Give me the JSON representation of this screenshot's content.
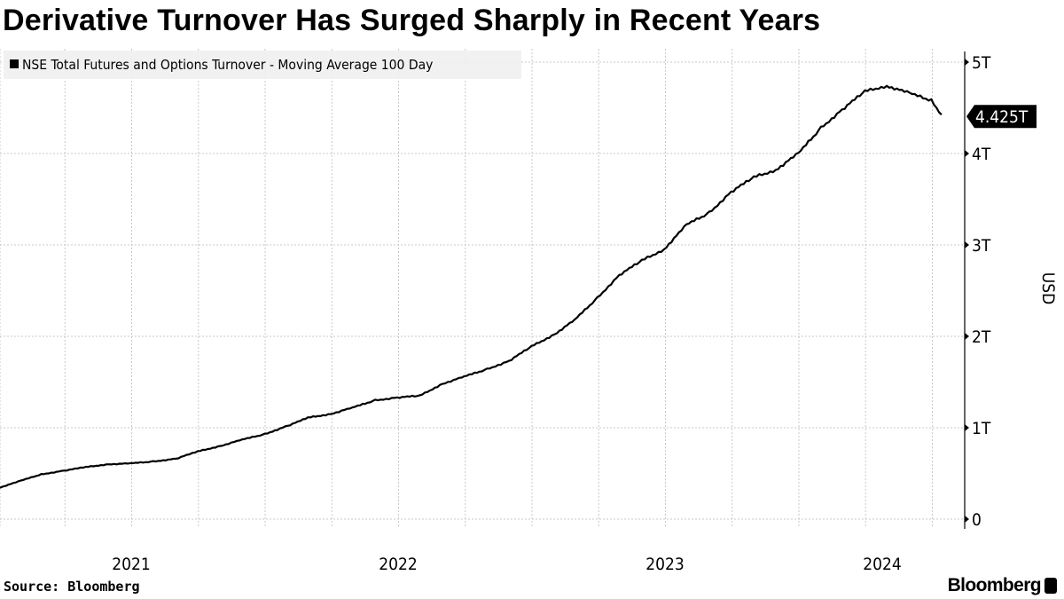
{
  "title": "Derivative Turnover Has Surged Sharply in Recent Years",
  "source": "Source: Bloomberg",
  "logo": "Bloomberg",
  "chart_data": {
    "type": "line",
    "title": "Derivative Turnover Has Surged Sharply in Recent Years",
    "ylabel": "USD",
    "xlabel": "",
    "ylim": [
      0,
      5
    ],
    "y_unit": "T",
    "y_ticks": [
      "0",
      "1T",
      "2T",
      "3T",
      "4T",
      "5T"
    ],
    "x_tick_labels": [
      "2021",
      "2022",
      "2023",
      "2024"
    ],
    "xlim": [
      "2021-01-01",
      "2024-08-15"
    ],
    "grid": true,
    "legend_position": "top-left",
    "last_value_label": "4.425T",
    "line_color": "#000000",
    "series": [
      {
        "name": "NSE Total Futures and Options Turnover - Moving Average 100 Day",
        "x": [
          "2021-01-01",
          "2021-02-01",
          "2021-03-01",
          "2021-04-01",
          "2021-05-01",
          "2021-06-01",
          "2021-07-01",
          "2021-08-01",
          "2021-09-01",
          "2021-10-01",
          "2021-11-01",
          "2021-12-01",
          "2022-01-01",
          "2022-02-01",
          "2022-03-01",
          "2022-04-01",
          "2022-05-01",
          "2022-06-01",
          "2022-07-01",
          "2022-08-01",
          "2022-09-01",
          "2022-10-01",
          "2022-11-01",
          "2022-12-01",
          "2023-01-01",
          "2023-02-01",
          "2023-03-01",
          "2023-04-01",
          "2023-05-01",
          "2023-06-01",
          "2023-07-01",
          "2023-08-01",
          "2023-09-01",
          "2023-10-01",
          "2023-11-01",
          "2023-12-01",
          "2024-01-01",
          "2024-02-01",
          "2024-03-01",
          "2024-04-01",
          "2024-05-01",
          "2024-06-01",
          "2024-07-01",
          "2024-07-15"
        ],
        "values": [
          0.34,
          0.42,
          0.49,
          0.53,
          0.57,
          0.6,
          0.61,
          0.63,
          0.66,
          0.74,
          0.8,
          0.87,
          0.93,
          1.02,
          1.11,
          1.15,
          1.22,
          1.3,
          1.33,
          1.35,
          1.48,
          1.56,
          1.64,
          1.73,
          1.89,
          2.02,
          2.18,
          2.42,
          2.67,
          2.83,
          2.95,
          3.22,
          3.35,
          3.58,
          3.74,
          3.82,
          4.0,
          4.28,
          4.48,
          4.68,
          4.74,
          4.66,
          4.58,
          4.425
        ]
      }
    ]
  }
}
